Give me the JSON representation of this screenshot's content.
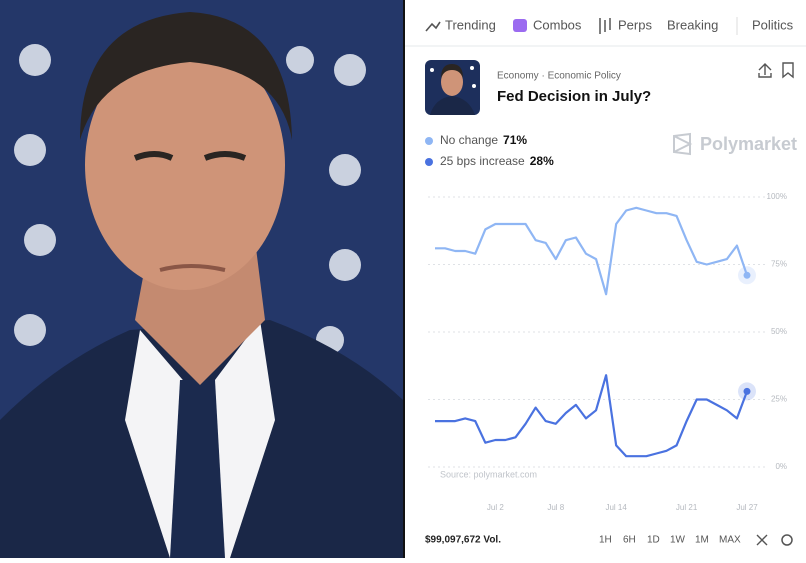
{
  "nav": [
    "Trending",
    "Combos",
    "Perps",
    "Breaking",
    "Politics"
  ],
  "market": {
    "category": "Economy · Economic Policy",
    "title": "Fed Decision in July?",
    "brand": "Polymarket"
  },
  "chart_data": {
    "type": "line",
    "categories": [
      null,
      null,
      null,
      null,
      null,
      null,
      "Jul 2",
      null,
      null,
      null,
      null,
      null,
      "Jul 8",
      null,
      null,
      null,
      null,
      null,
      "Jul 14",
      null,
      null,
      null,
      null,
      null,
      null,
      "Jul 21",
      null,
      null,
      null,
      null,
      null,
      "Jul 27"
    ],
    "series": [
      {
        "name": "No change",
        "legend_value": "71%",
        "color": "#8fb6f4",
        "values": [
          81,
          81,
          80,
          80,
          79,
          88,
          90,
          90,
          90,
          90,
          84,
          83,
          77,
          84,
          85,
          79,
          77,
          64,
          90,
          95,
          96,
          95,
          94,
          94,
          93,
          84,
          76,
          75,
          76,
          77,
          82,
          71
        ]
      },
      {
        "name": "25 bps increase",
        "legend_value": "28%",
        "color": "#4a72e0",
        "values": [
          17,
          17,
          17,
          18,
          17,
          9,
          10,
          10,
          11,
          16,
          22,
          17,
          16,
          20,
          23,
          18,
          21,
          34,
          8,
          4,
          4,
          4,
          5,
          6,
          8,
          17,
          25,
          25,
          23,
          21,
          18,
          28
        ]
      }
    ],
    "ylim": [
      0,
      100
    ],
    "yticks": [
      {
        "value": 0,
        "label": "0%"
      },
      {
        "value": 25,
        "label": "25%"
      },
      {
        "value": 50,
        "label": "50%"
      },
      {
        "value": 75,
        "label": "75%"
      },
      {
        "value": 100,
        "label": "100%"
      }
    ],
    "grid": true,
    "source": "Source: polymarket.com"
  },
  "footer": {
    "volume": "$99,097,672 Vol.",
    "ranges": [
      "1H",
      "6H",
      "1D",
      "1W",
      "1M",
      "MAX"
    ]
  }
}
